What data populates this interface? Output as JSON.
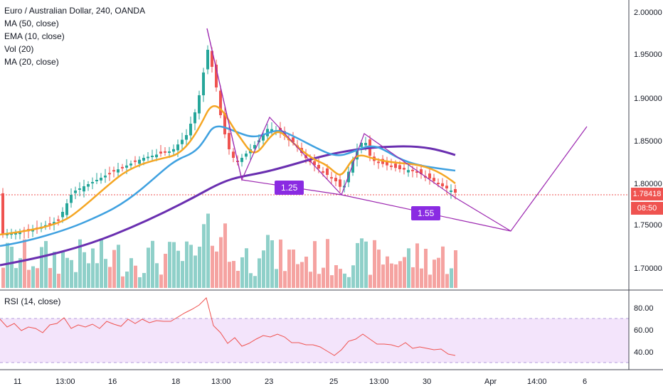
{
  "header": {
    "title": "Euro / Australian Dollar, 240, OANDA",
    "indicators": [
      "MA (50, close)",
      "EMA (10, close)",
      "Vol (20)",
      "MA (20, close)"
    ]
  },
  "rsi_panel": {
    "label": "RSI (14, close)"
  },
  "price_axis": {
    "ticks": [
      "2.00000",
      "1.95000",
      "1.90000",
      "1.85000",
      "1.80000",
      "1.75000",
      "1.70000"
    ],
    "current_price": "1.78418",
    "countdown": "08:50"
  },
  "rsi_axis": {
    "ticks": [
      "80.00",
      "60.00",
      "40.00"
    ]
  },
  "time_axis": {
    "ticks": [
      "11",
      "13:00",
      "16",
      "18",
      "13:00",
      "23",
      "25",
      "13:00",
      "30",
      "Apr",
      "14:00",
      "6"
    ]
  },
  "annotations": {
    "ratio_1": "1.25",
    "ratio_2": "1.55"
  },
  "colors": {
    "up": "#26a69a",
    "down": "#ef5350",
    "ma50": "#6a2fb0",
    "ema10": "#f5a623",
    "ma20": "#3fa1e0",
    "pattern": "#9c27b0",
    "rsi_band": "#f3e4fb"
  },
  "chart_data": {
    "type": "candlestick",
    "series": [
      {
        "name": "MA (50, close)",
        "values": [
          1.702,
          1.706,
          1.712,
          1.72,
          1.73,
          1.745,
          1.765,
          1.79,
          1.81,
          1.825,
          1.836,
          1.842,
          1.845,
          1.846,
          1.845,
          1.84,
          1.832
        ]
      },
      {
        "name": "EMA (10, close)",
        "values": [
          1.735,
          1.74,
          1.76,
          1.8,
          1.82,
          1.845,
          1.88,
          1.85,
          1.84,
          1.85,
          1.832,
          1.815,
          1.83,
          1.825,
          1.82,
          1.81,
          1.798
        ]
      },
      {
        "name": "MA (20, close)",
        "values": [
          1.727,
          1.732,
          1.745,
          1.78,
          1.795,
          1.81,
          1.85,
          1.848,
          1.845,
          1.855,
          1.84,
          1.825,
          1.83,
          1.825,
          1.822,
          1.818,
          1.812
        ]
      }
    ],
    "price_range": [
      1.68,
      2.01
    ],
    "rsi_range": [
      25,
      88
    ],
    "rsi_levels": [
      70,
      30
    ]
  }
}
